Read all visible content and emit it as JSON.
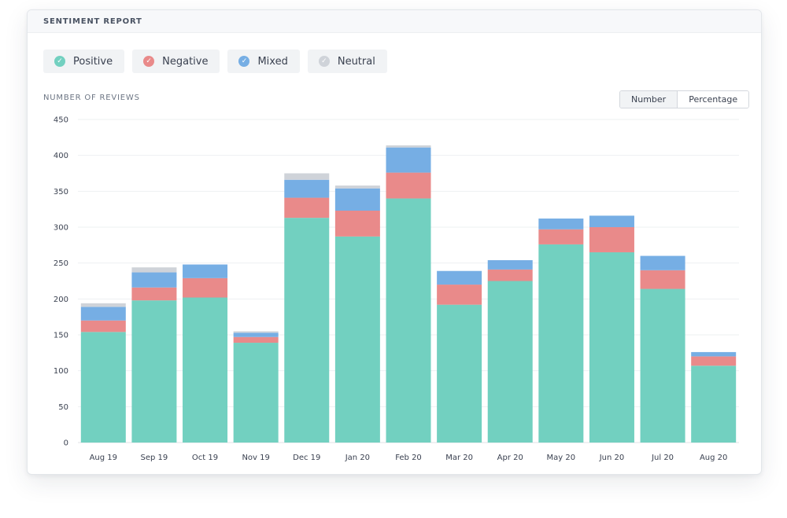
{
  "header": {
    "title": "SENTIMENT REPORT"
  },
  "legend": [
    {
      "label": "Positive",
      "color": "#72d0c0",
      "icon": "check-icon"
    },
    {
      "label": "Negative",
      "color": "#e98a8a",
      "icon": "check-icon"
    },
    {
      "label": "Mixed",
      "color": "#76aee4",
      "icon": "check-icon"
    },
    {
      "label": "Neutral",
      "color": "#cfd3d9",
      "icon": "check-icon"
    }
  ],
  "toggle": {
    "number_label": "Number",
    "percentage_label": "Percentage",
    "selected": "Number"
  },
  "chart_data": {
    "type": "bar",
    "stacked": true,
    "title": "SENTIMENT REPORT",
    "ylabel": "NUMBER OF REVIEWS",
    "xlabel": "",
    "ylim": [
      0,
      450
    ],
    "yticks": [
      0,
      50,
      100,
      150,
      200,
      250,
      300,
      350,
      400,
      450
    ],
    "grid": true,
    "categories": [
      "Aug 19",
      "Sep 19",
      "Oct 19",
      "Nov 19",
      "Dec 19",
      "Jan 20",
      "Feb 20",
      "Mar 20",
      "Apr 20",
      "May 20",
      "Jun 20",
      "Jul 20",
      "Aug 20"
    ],
    "series": [
      {
        "name": "Positive",
        "color": "#72d0c0",
        "values": [
          154,
          198,
          202,
          139,
          313,
          287,
          340,
          192,
          225,
          276,
          265,
          214,
          107
        ]
      },
      {
        "name": "Negative",
        "color": "#e98a8a",
        "values": [
          16,
          18,
          27,
          8,
          28,
          36,
          36,
          28,
          16,
          21,
          35,
          26,
          13
        ]
      },
      {
        "name": "Mixed",
        "color": "#76aee4",
        "values": [
          19,
          21,
          19,
          6,
          25,
          31,
          35,
          19,
          13,
          15,
          16,
          20,
          6
        ]
      },
      {
        "name": "Neutral",
        "color": "#cfd3d9",
        "values": [
          5,
          7,
          0,
          2,
          9,
          4,
          3,
          0,
          0,
          0,
          0,
          0,
          0
        ]
      }
    ]
  }
}
